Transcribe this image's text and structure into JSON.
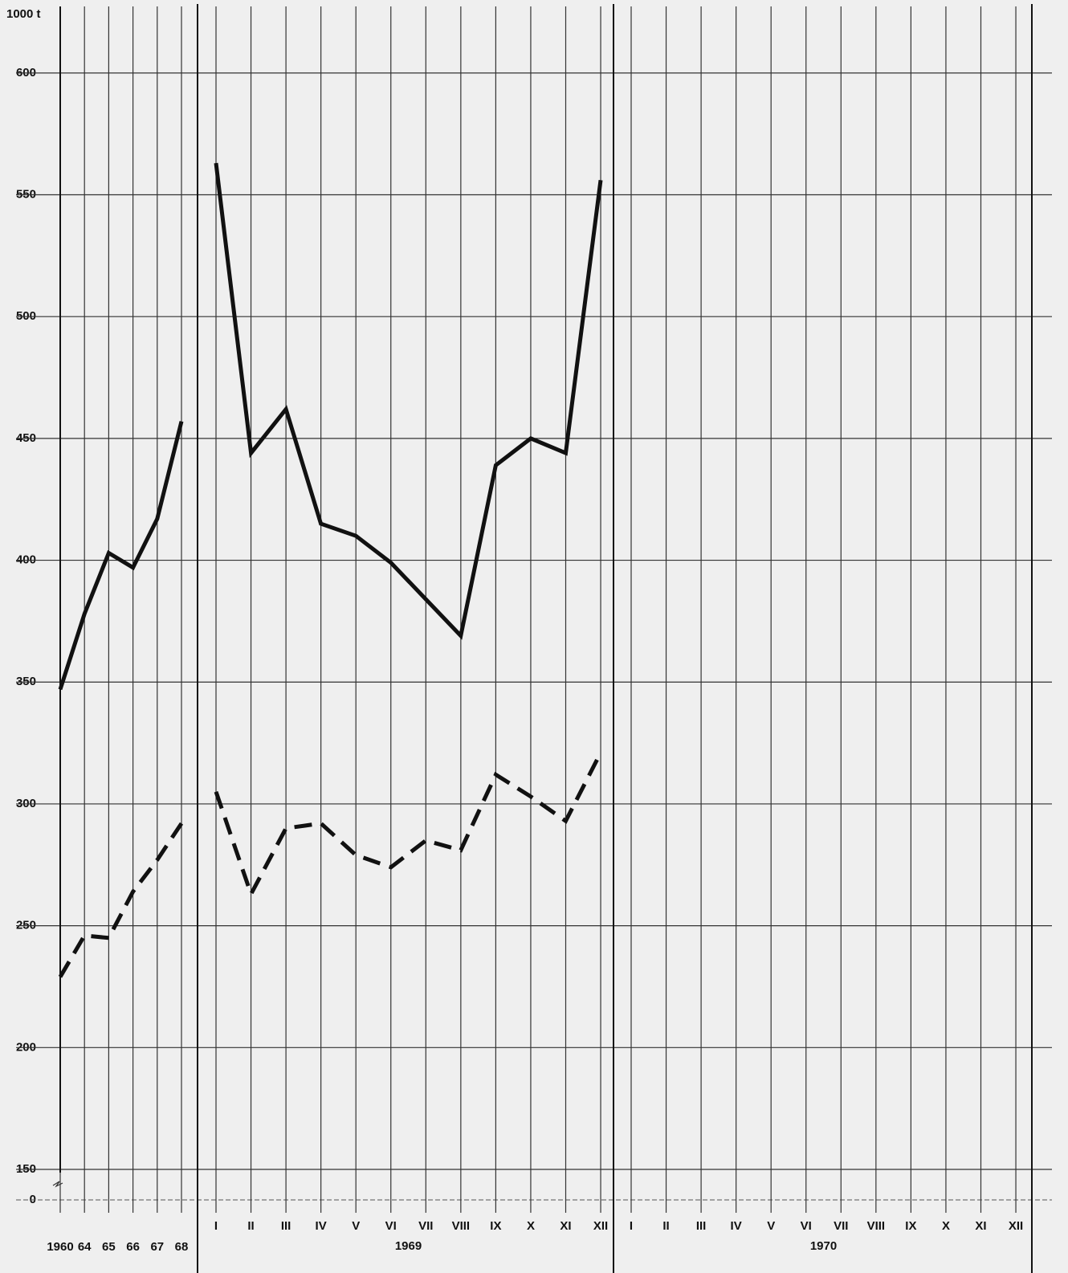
{
  "chart_data": {
    "type": "line",
    "y_unit_label": "1000 t",
    "ylim": [
      150,
      625
    ],
    "yticks": [
      150,
      200,
      250,
      300,
      350,
      400,
      450,
      500,
      550,
      600
    ],
    "yticks_below_break": [
      0
    ],
    "grid": true,
    "group_labels": [
      null,
      "1969",
      "1970"
    ],
    "categories": [
      [
        "1960",
        "64",
        "65",
        "66",
        "67",
        "68"
      ],
      [
        "I",
        "II",
        "III",
        "IV",
        "V",
        "VI",
        "VII",
        "VIII",
        "IX",
        "X",
        "XI",
        "XII"
      ],
      [
        "I",
        "II",
        "III",
        "IV",
        "V",
        "VI",
        "VII",
        "VIII",
        "IX",
        "X",
        "XI",
        "XII"
      ]
    ],
    "series": [
      {
        "color": "#111111",
        "dashed": false,
        "values": [
          [
            347,
            378,
            403,
            397,
            417,
            457
          ],
          [
            563,
            444,
            462,
            415,
            410,
            399,
            384,
            369,
            439,
            450,
            444,
            556
          ],
          [
            null,
            null,
            null,
            null,
            null,
            null,
            null,
            null,
            null,
            null,
            null,
            null
          ]
        ]
      },
      {
        "color": "#111111",
        "dashed": true,
        "values": [
          [
            229,
            246,
            245,
            264,
            277,
            292
          ],
          [
            305,
            263,
            290,
            292,
            279,
            274,
            285,
            281,
            312,
            303,
            293,
            321
          ],
          [
            null,
            null,
            null,
            null,
            null,
            null,
            null,
            null,
            null,
            null,
            null,
            null
          ]
        ]
      }
    ]
  }
}
